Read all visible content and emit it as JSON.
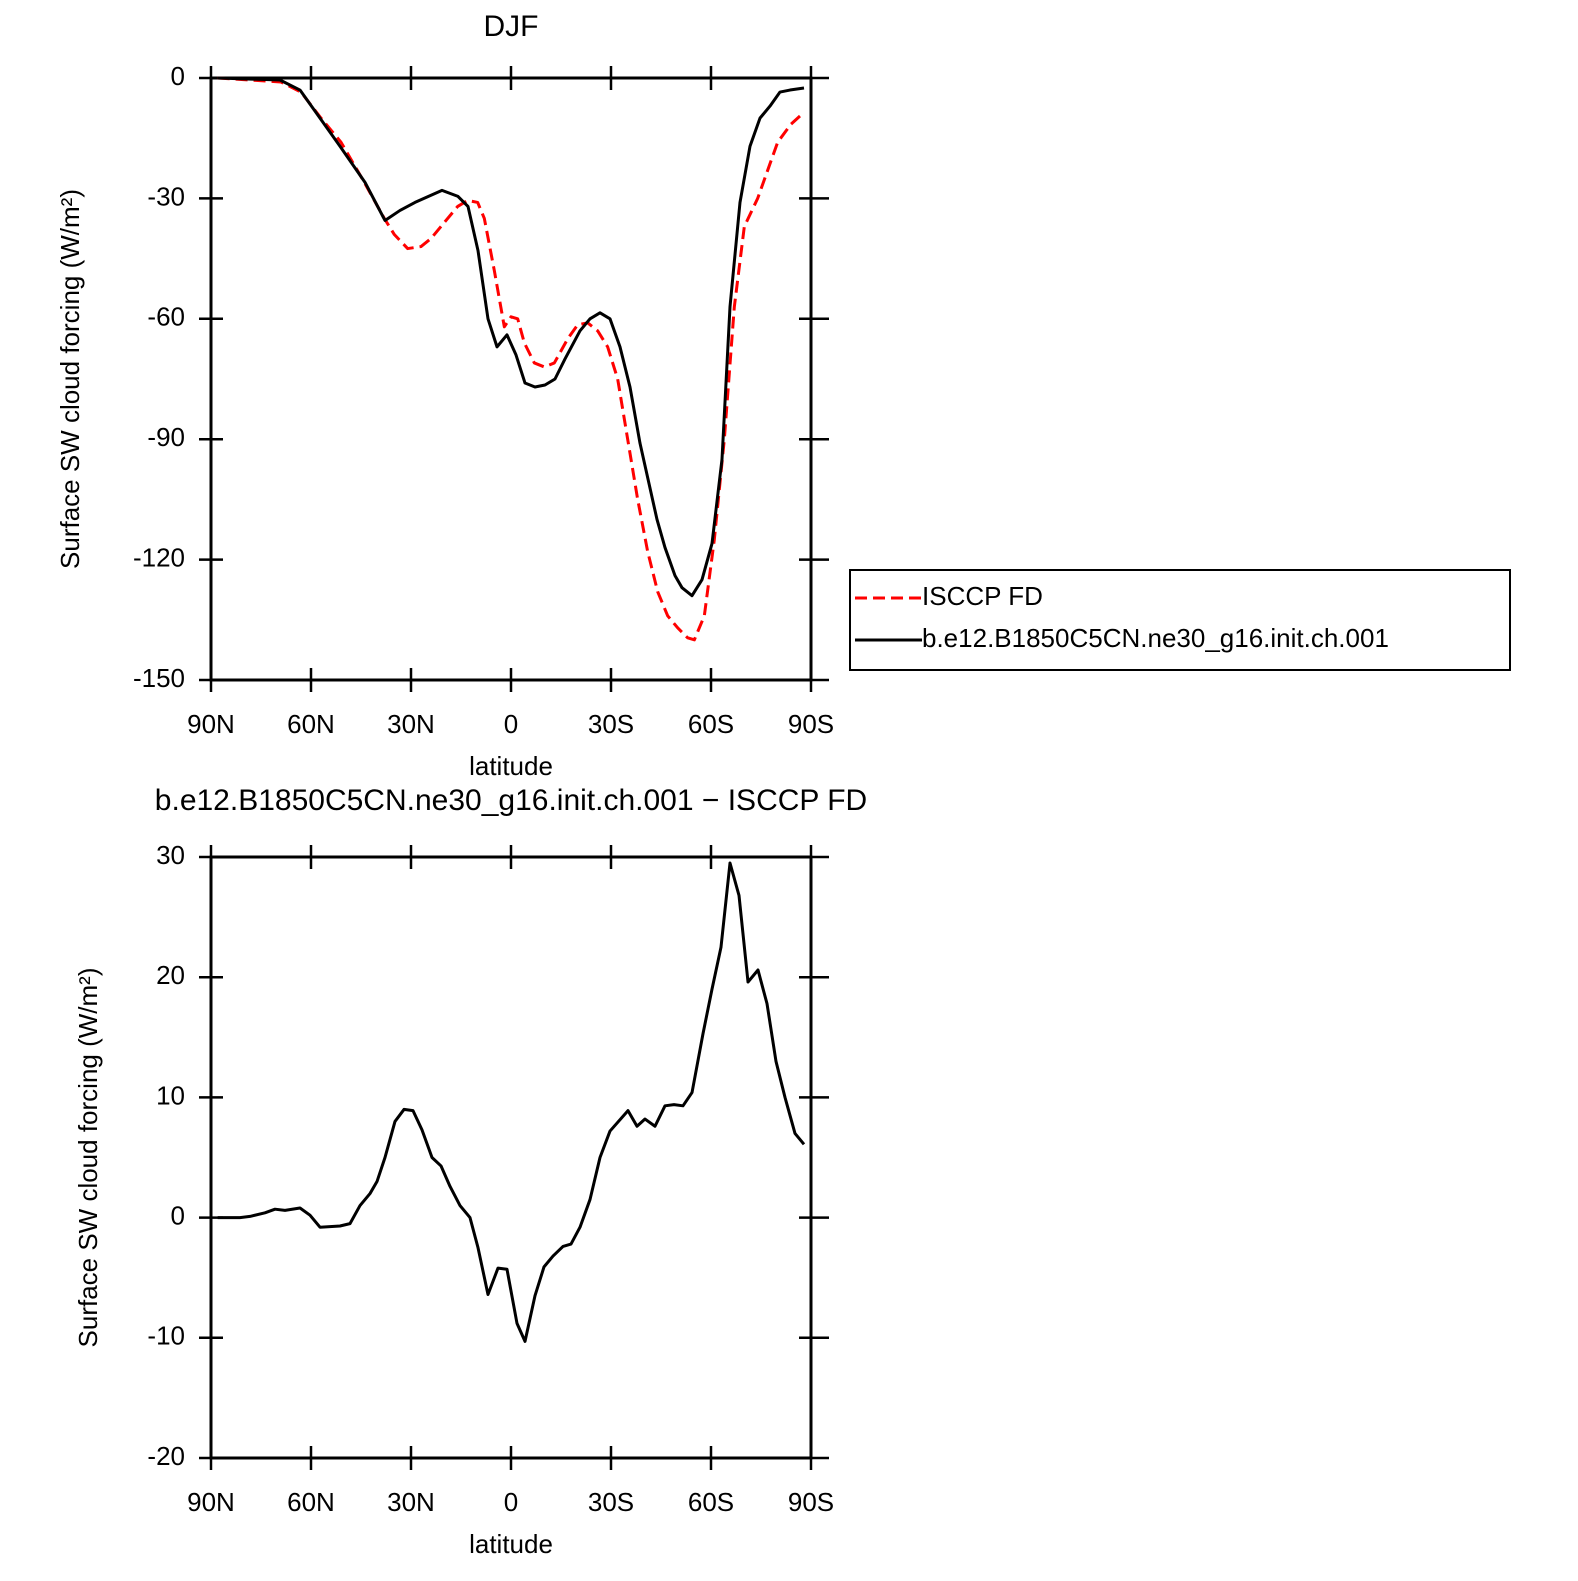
{
  "chart_data": [
    {
      "type": "line",
      "title": "DJF",
      "x_label": "latitude",
      "y_label": "Surface SW cloud forcing (W/m²)",
      "xlim": [
        90,
        -90
      ],
      "xticks": [
        {
          "value": 90,
          "label": "90N"
        },
        {
          "value": 60,
          "label": "60N"
        },
        {
          "value": 30,
          "label": "30N"
        },
        0,
        {
          "value": -30,
          "label": "30S"
        },
        {
          "value": -60,
          "label": "60S"
        },
        {
          "value": -90,
          "label": "90S"
        }
      ],
      "ylim": [
        -150,
        0
      ],
      "yticks": [
        -150,
        -120,
        -90,
        -60,
        -30,
        0
      ],
      "legend": "right",
      "series": [
        {
          "name": "ISCCP FD",
          "color": "#ff0000",
          "style": "dashed",
          "x": [
            88,
            69,
            63,
            57,
            51,
            44,
            38,
            35,
            31,
            27,
            24,
            20,
            16,
            13,
            10,
            8,
            5,
            2,
            0,
            -2,
            -4,
            -7,
            -10,
            -13,
            -17,
            -20,
            -23,
            -26,
            -29,
            -32,
            -35,
            -38,
            -41,
            -44,
            -47,
            -50,
            -53,
            -55,
            -58,
            -61,
            -64,
            -67,
            -70,
            -74,
            -77,
            -80,
            -84,
            -88
          ],
          "values": [
            0,
            -1,
            -3.5,
            -10,
            -16,
            -26,
            -35,
            -39,
            -42.5,
            -42,
            -40,
            -36,
            -32,
            -30.5,
            -31,
            -35,
            -48,
            -62,
            -59.5,
            -60,
            -66,
            -71,
            -72,
            -71,
            -65,
            -61.5,
            -61,
            -63,
            -67,
            -75,
            -90,
            -105,
            -118,
            -128,
            -134,
            -137,
            -139.5,
            -140,
            -134,
            -115,
            -90,
            -57,
            -37,
            -30,
            -23,
            -16,
            -11.5,
            -8.5
          ]
        },
        {
          "name": "b.e12.B1850C5CN.ne30_g16.init.ch.001",
          "color": "#000000",
          "style": "solid",
          "x": [
            88,
            69.3,
            63.3,
            57.3,
            51.3,
            43.8,
            37.8,
            33.3,
            28.8,
            20.7,
            15.9,
            12.9,
            9.9,
            6.9,
            4.2,
            1.2,
            -1.5,
            -4.2,
            -7.2,
            -10.2,
            -13.2,
            -16.2,
            -20.7,
            -23.7,
            -26.7,
            -29.7,
            -32.7,
            -35.7,
            -38.7,
            -43.8,
            -46.2,
            -49.2,
            -51.3,
            -54.3,
            -57.3,
            -60.3,
            -63.3,
            -65.7,
            -68.7,
            -71.7,
            -74.7,
            -77.7,
            -80.7,
            -83.7,
            -87.9
          ],
          "values": [
            0,
            -0.5,
            -3,
            -10,
            -17,
            -26,
            -35.5,
            -33,
            -31,
            -28,
            -29.5,
            -32,
            -43,
            -60,
            -67,
            -64,
            -69,
            -76,
            -77,
            -76.5,
            -75,
            -70,
            -63,
            -60,
            -58.5,
            -60,
            -67,
            -77,
            -91,
            -110,
            -117,
            -124,
            -127,
            -129,
            -125,
            -116,
            -95,
            -57,
            -31,
            -17,
            -10,
            -7,
            -3.5,
            -3,
            -2.5
          ]
        }
      ]
    },
    {
      "type": "line",
      "title": "b.e12.B1850C5CN.ne30_g16.init.ch.001 − ISCCP FD",
      "x_label": "latitude",
      "y_label": "Surface SW cloud forcing (W/m²)",
      "xlim": [
        90,
        -90
      ],
      "xticks": [
        {
          "value": 90,
          "label": "90N"
        },
        {
          "value": 60,
          "label": "60N"
        },
        {
          "value": 30,
          "label": "30N"
        },
        0,
        {
          "value": -30,
          "label": "30S"
        },
        {
          "value": -60,
          "label": "60S"
        },
        {
          "value": -90,
          "label": "90S"
        }
      ],
      "ylim": [
        -20,
        30
      ],
      "yticks": [
        -20,
        -10,
        0,
        10,
        20,
        30
      ],
      "series": [
        {
          "color": "#000000",
          "style": "solid",
          "x": [
            88,
            81.3,
            78.3,
            73.8,
            70.8,
            67.8,
            63.3,
            60.3,
            57.3,
            51.3,
            48.3,
            45.3,
            42.3,
            40.2,
            37.8,
            34.8,
            32.1,
            29.4,
            26.7,
            23.7,
            21,
            18.3,
            15.3,
            12.3,
            9.9,
            6.9,
            3.9,
            1.2,
            -1.8,
            -4.2,
            -7.2,
            -9.9,
            -12.6,
            -15.6,
            -18,
            -20.7,
            -23.7,
            -26.7,
            -29.7,
            -35.1,
            -37.8,
            -40.2,
            -43.2,
            -46.2,
            -48.9,
            -51.6,
            -54.3,
            -57.6,
            -60.3,
            -63,
            -65.7,
            -68.4,
            -71.1,
            -74.1,
            -76.8,
            -79.5,
            -82.2,
            -85.2,
            -87.9
          ],
          "values": [
            0,
            0,
            0.1,
            0.4,
            0.7,
            0.6,
            0.8,
            0.2,
            -0.8,
            -0.7,
            -0.5,
            1,
            2,
            3,
            5,
            8,
            9,
            8.9,
            7.3,
            5,
            4.3,
            2.6,
            1,
            0,
            -2.5,
            -6.4,
            -4.2,
            -4.3,
            -8.8,
            -10.3,
            -6.5,
            -4.1,
            -3.2,
            -2.4,
            -2.2,
            -0.8,
            1.5,
            5,
            7.2,
            8.9,
            7.6,
            8.2,
            7.6,
            9.3,
            9.4,
            9.3,
            10.4,
            15.3,
            19,
            22.5,
            29.5,
            26.8,
            19.6,
            20.6,
            17.8,
            13,
            10,
            7,
            6.1
          ]
        }
      ]
    }
  ]
}
